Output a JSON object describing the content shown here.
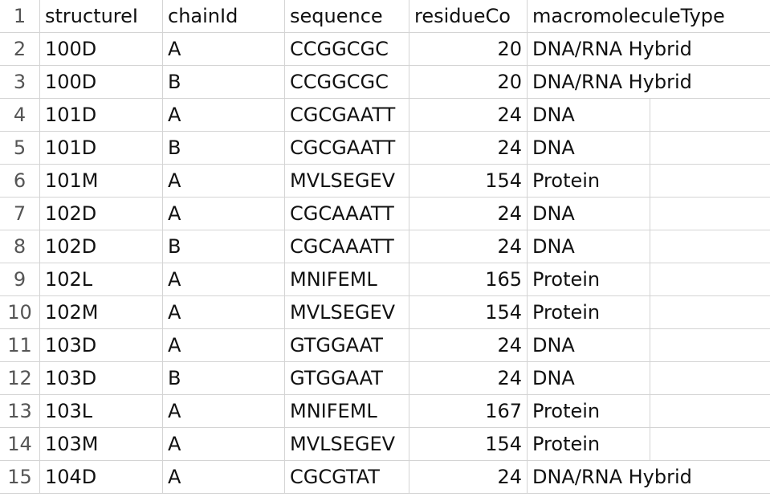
{
  "rows": [
    {
      "number": 1,
      "cells": [
        "structureI",
        "chainId",
        "sequence",
        "residueCo",
        "macromoleculeType"
      ]
    },
    {
      "number": 2,
      "cells": [
        "100D",
        "A",
        "CCGGCGC",
        20,
        "DNA/RNA Hybrid"
      ]
    },
    {
      "number": 3,
      "cells": [
        "100D",
        "B",
        "CCGGCGC",
        20,
        "DNA/RNA Hybrid"
      ]
    },
    {
      "number": 4,
      "cells": [
        "101D",
        "A",
        "CGCGAATT",
        24,
        "DNA"
      ]
    },
    {
      "number": 5,
      "cells": [
        "101D",
        "B",
        "CGCGAATT",
        24,
        "DNA"
      ]
    },
    {
      "number": 6,
      "cells": [
        "101M",
        "A",
        "MVLSEGEV",
        154,
        "Protein"
      ]
    },
    {
      "number": 7,
      "cells": [
        "102D",
        "A",
        "CGCAAATT",
        24,
        "DNA"
      ]
    },
    {
      "number": 8,
      "cells": [
        "102D",
        "B",
        "CGCAAATT",
        24,
        "DNA"
      ]
    },
    {
      "number": 9,
      "cells": [
        "102L",
        "A",
        "MNIFEML",
        165,
        "Protein"
      ]
    },
    {
      "number": 10,
      "cells": [
        "102M",
        "A",
        "MVLSEGEV",
        154,
        "Protein"
      ]
    },
    {
      "number": 11,
      "cells": [
        "103D",
        "A",
        "GTGGAAT",
        24,
        "DNA"
      ]
    },
    {
      "number": 12,
      "cells": [
        "103D",
        "B",
        "GTGGAAT",
        24,
        "DNA"
      ]
    },
    {
      "number": 13,
      "cells": [
        "103L",
        "A",
        "MNIFEML",
        167,
        "Protein"
      ]
    },
    {
      "number": 14,
      "cells": [
        "103M",
        "A",
        "MVLSEGEV",
        154,
        "Protein"
      ]
    },
    {
      "number": 15,
      "cells": [
        "104D",
        "A",
        "CGCGTAT",
        24,
        "DNA/RNA Hybrid"
      ]
    }
  ]
}
